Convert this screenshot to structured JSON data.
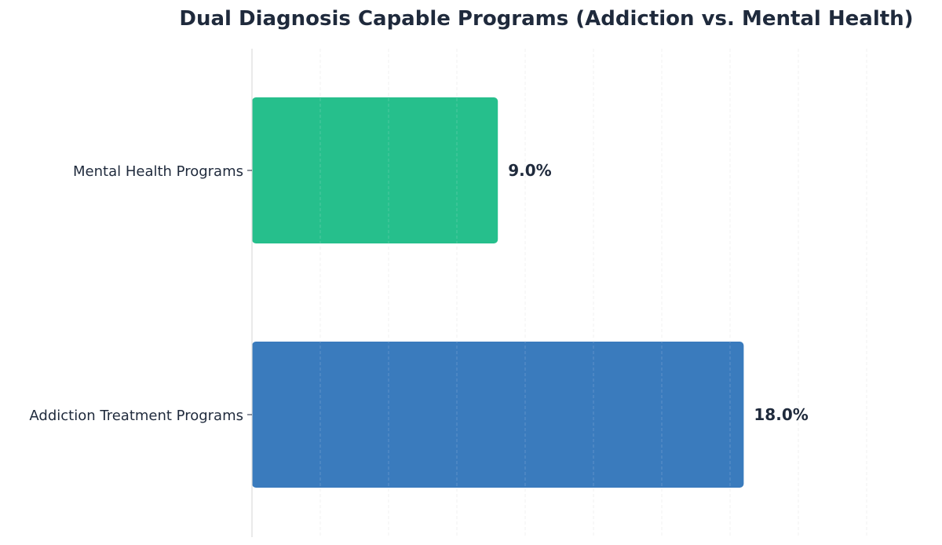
{
  "chart_data": {
    "type": "bar",
    "orientation": "horizontal",
    "title": "Dual Diagnosis Capable Programs (Addiction vs. Mental Health)",
    "xlabel": "",
    "ylabel": "",
    "categories": [
      "Mental Health Programs",
      "Addiction Treatment Programs"
    ],
    "values": [
      9.0,
      18.0
    ],
    "data_labels": [
      "9.0%",
      "18.0%"
    ],
    "colors": [
      "#26bf8c",
      "#3a7bbd"
    ],
    "xlim": [
      0,
      25
    ],
    "x_grid_step": 2.5,
    "grid": true,
    "x_tick_labels_visible": false,
    "legend": "none"
  }
}
